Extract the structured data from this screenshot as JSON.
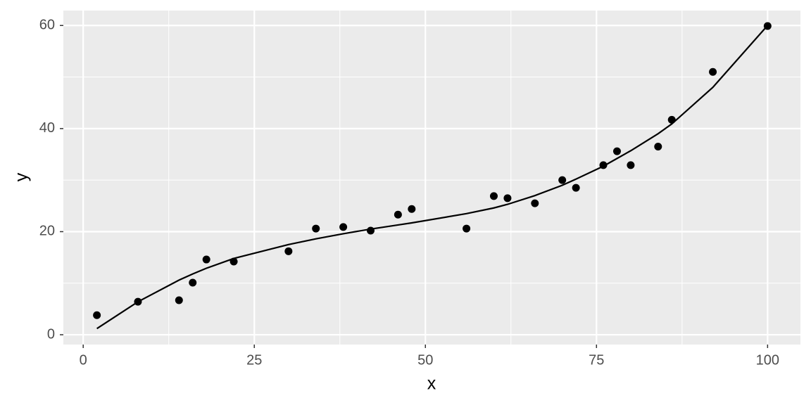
{
  "chart_data": {
    "type": "scatter",
    "x_label": "x",
    "y_label": "y",
    "x": [
      2,
      8,
      14,
      16,
      18,
      22,
      30,
      34,
      38,
      42,
      46,
      48,
      56,
      60,
      62,
      66,
      70,
      72,
      76,
      78,
      80,
      84,
      86,
      92,
      100
    ],
    "series": [
      {
        "type": "scatter",
        "color": "#000000",
        "values": [
          3.8,
          6.4,
          6.7,
          10.1,
          14.6,
          14.2,
          16.2,
          20.6,
          20.9,
          20.2,
          23.3,
          24.4,
          20.6,
          26.9,
          26.5,
          25.5,
          30.0,
          28.5,
          32.9,
          35.6,
          32.9,
          36.5,
          41.7,
          51.0,
          59.9
        ]
      },
      {
        "type": "line",
        "color": "#000000",
        "values": [
          1.2,
          6.4,
          10.6,
          11.8,
          12.9,
          14.8,
          17.5,
          18.6,
          19.6,
          20.5,
          21.3,
          21.7,
          23.5,
          24.6,
          25.3,
          27.0,
          29.0,
          30.2,
          32.7,
          34.2,
          35.7,
          39.0,
          40.9,
          48.0,
          60.0
        ]
      }
    ],
    "xlim": [
      -2.9,
      104.8
    ],
    "ylim": [
      -1.9,
      62.9
    ],
    "xticks": [
      0,
      25,
      50,
      75,
      100
    ],
    "yticks": [
      0,
      20,
      40,
      60
    ],
    "grid": true,
    "panel_color": "#ebebeb"
  }
}
